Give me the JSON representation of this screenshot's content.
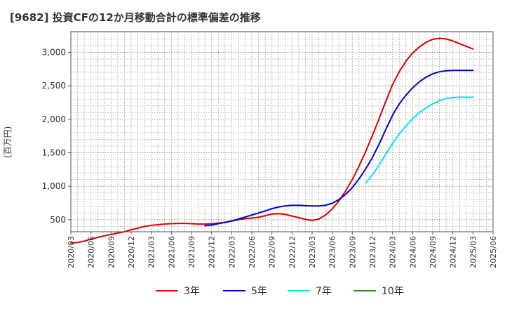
{
  "chart_data": {
    "type": "line",
    "title": "[9682]  投資CFの12か月移動合計の標準偏差の推移",
    "ylabel": "(百万円)",
    "xlabel": "",
    "ylim": [
      320,
      3310
    ],
    "yticks": [
      500,
      1000,
      1500,
      2000,
      2500,
      3000
    ],
    "ytick_labels": [
      "500",
      "1,000",
      "1,500",
      "2,000",
      "2,500",
      "3,000"
    ],
    "x_range": [
      "2020-03",
      "2025-06"
    ],
    "xticks": [
      "2020/03",
      "2020/06",
      "2020/09",
      "2020/12",
      "2021/03",
      "2021/06",
      "2021/09",
      "2021/12",
      "2022/03",
      "2022/06",
      "2022/09",
      "2022/12",
      "2023/03",
      "2023/06",
      "2023/09",
      "2023/12",
      "2024/03",
      "2024/06",
      "2024/09",
      "2024/12",
      "2025/03",
      "2025/06"
    ],
    "grid": true,
    "legend_position": "bottom",
    "series": [
      {
        "name": "3年",
        "color": "#dd0000",
        "points": [
          [
            "2020-03",
            150
          ],
          [
            "2020-04",
            160
          ],
          [
            "2020-05",
            180
          ],
          [
            "2020-06",
            210
          ],
          [
            "2020-07",
            235
          ],
          [
            "2020-08",
            260
          ],
          [
            "2020-09",
            280
          ],
          [
            "2020-10",
            300
          ],
          [
            "2020-11",
            320
          ],
          [
            "2020-12",
            350
          ],
          [
            "2021-01",
            375
          ],
          [
            "2021-02",
            400
          ],
          [
            "2021-03",
            415
          ],
          [
            "2021-04",
            425
          ],
          [
            "2021-05",
            435
          ],
          [
            "2021-06",
            440
          ],
          [
            "2021-07",
            445
          ],
          [
            "2021-08",
            445
          ],
          [
            "2021-09",
            440
          ],
          [
            "2021-10",
            435
          ],
          [
            "2021-11",
            435
          ],
          [
            "2021-12",
            440
          ],
          [
            "2022-01",
            450
          ],
          [
            "2022-02",
            460
          ],
          [
            "2022-03",
            480
          ],
          [
            "2022-04",
            500
          ],
          [
            "2022-05",
            515
          ],
          [
            "2022-06",
            525
          ],
          [
            "2022-07",
            535
          ],
          [
            "2022-08",
            560
          ],
          [
            "2022-09",
            585
          ],
          [
            "2022-10",
            590
          ],
          [
            "2022-11",
            580
          ],
          [
            "2022-12",
            555
          ],
          [
            "2023-01",
            530
          ],
          [
            "2023-02",
            505
          ],
          [
            "2023-03",
            490
          ],
          [
            "2023-04",
            510
          ],
          [
            "2023-05",
            570
          ],
          [
            "2023-06",
            660
          ],
          [
            "2023-07",
            780
          ],
          [
            "2023-08",
            930
          ],
          [
            "2023-09",
            1100
          ],
          [
            "2023-10",
            1300
          ],
          [
            "2023-11",
            1520
          ],
          [
            "2023-12",
            1760
          ],
          [
            "2024-01",
            2010
          ],
          [
            "2024-02",
            2270
          ],
          [
            "2024-03",
            2520
          ],
          [
            "2024-04",
            2710
          ],
          [
            "2024-05",
            2870
          ],
          [
            "2024-06",
            2990
          ],
          [
            "2024-07",
            3080
          ],
          [
            "2024-08",
            3150
          ],
          [
            "2024-09",
            3195
          ],
          [
            "2024-10",
            3210
          ],
          [
            "2024-11",
            3200
          ],
          [
            "2024-12",
            3170
          ],
          [
            "2025-01",
            3130
          ],
          [
            "2025-02",
            3090
          ],
          [
            "2025-03",
            3050
          ]
        ]
      },
      {
        "name": "5年",
        "color": "#0000cc",
        "points": [
          [
            "2021-11",
            410
          ],
          [
            "2021-12",
            420
          ],
          [
            "2022-01",
            440
          ],
          [
            "2022-02",
            460
          ],
          [
            "2022-03",
            480
          ],
          [
            "2022-04",
            510
          ],
          [
            "2022-05",
            540
          ],
          [
            "2022-06",
            570
          ],
          [
            "2022-07",
            600
          ],
          [
            "2022-08",
            630
          ],
          [
            "2022-09",
            665
          ],
          [
            "2022-10",
            690
          ],
          [
            "2022-11",
            705
          ],
          [
            "2022-12",
            715
          ],
          [
            "2023-01",
            715
          ],
          [
            "2023-02",
            710
          ],
          [
            "2023-03",
            705
          ],
          [
            "2023-04",
            705
          ],
          [
            "2023-05",
            715
          ],
          [
            "2023-06",
            745
          ],
          [
            "2023-07",
            800
          ],
          [
            "2023-08",
            880
          ],
          [
            "2023-09",
            980
          ],
          [
            "2023-10",
            1110
          ],
          [
            "2023-11",
            1260
          ],
          [
            "2023-12",
            1430
          ],
          [
            "2024-01",
            1630
          ],
          [
            "2024-02",
            1850
          ],
          [
            "2024-03",
            2060
          ],
          [
            "2024-04",
            2230
          ],
          [
            "2024-05",
            2360
          ],
          [
            "2024-06",
            2470
          ],
          [
            "2024-07",
            2560
          ],
          [
            "2024-08",
            2630
          ],
          [
            "2024-09",
            2680
          ],
          [
            "2024-10",
            2710
          ],
          [
            "2024-11",
            2725
          ],
          [
            "2024-12",
            2730
          ],
          [
            "2025-01",
            2730
          ],
          [
            "2025-02",
            2730
          ],
          [
            "2025-03",
            2730
          ]
        ]
      },
      {
        "name": "7年",
        "color": "#00e5ee",
        "points": [
          [
            "2023-11",
            1050
          ],
          [
            "2023-12",
            1170
          ],
          [
            "2024-01",
            1320
          ],
          [
            "2024-02",
            1480
          ],
          [
            "2024-03",
            1640
          ],
          [
            "2024-04",
            1780
          ],
          [
            "2024-05",
            1900
          ],
          [
            "2024-06",
            2010
          ],
          [
            "2024-07",
            2100
          ],
          [
            "2024-08",
            2170
          ],
          [
            "2024-09",
            2230
          ],
          [
            "2024-10",
            2280
          ],
          [
            "2024-11",
            2310
          ],
          [
            "2024-12",
            2325
          ],
          [
            "2025-01",
            2330
          ],
          [
            "2025-02",
            2330
          ],
          [
            "2025-03",
            2330
          ]
        ]
      },
      {
        "name": "10年",
        "color": "#228b22",
        "points": []
      }
    ]
  }
}
